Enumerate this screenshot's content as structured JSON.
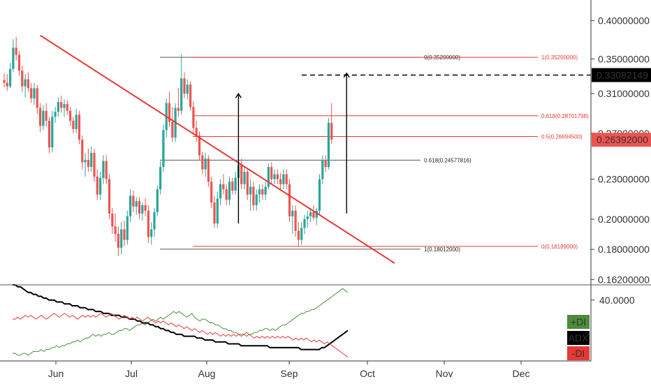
{
  "chart_data": [
    {
      "type": "candlestick",
      "title": "",
      "x_labels": [
        "Jun",
        "Jul",
        "Aug",
        "Sep",
        "Oct",
        "Nov",
        "Dec"
      ],
      "price_axis_ticks": [
        "0.40000000",
        "0.35000000",
        "0.31000000",
        "0.27000000",
        "0.23000000",
        "0.20000000",
        "0.18000000",
        "0.16200000"
      ],
      "price_axis_scale": "log",
      "price_range": [
        0.159,
        0.43
      ],
      "current_price": {
        "value": 0.26392,
        "label": "0.26392000",
        "color": "#ef5350"
      },
      "target_price": {
        "value": 0.33082149,
        "label": "0.33082149",
        "color": "#000000"
      },
      "bull_color": "#26a69a",
      "bear_color": "#ef5350",
      "candles": [
        [
          0.325,
          0.333,
          0.317,
          0.322
        ],
        [
          0.322,
          0.332,
          0.313,
          0.318
        ],
        [
          0.318,
          0.345,
          0.316,
          0.338
        ],
        [
          0.338,
          0.375,
          0.334,
          0.364
        ],
        [
          0.364,
          0.378,
          0.348,
          0.355
        ],
        [
          0.355,
          0.36,
          0.33,
          0.336
        ],
        [
          0.336,
          0.342,
          0.312,
          0.318
        ],
        [
          0.318,
          0.332,
          0.306,
          0.326
        ],
        [
          0.326,
          0.334,
          0.312,
          0.316
        ],
        [
          0.316,
          0.322,
          0.3,
          0.305
        ],
        [
          0.305,
          0.322,
          0.298,
          0.316
        ],
        [
          0.316,
          0.32,
          0.289,
          0.295
        ],
        [
          0.295,
          0.3,
          0.271,
          0.277
        ],
        [
          0.277,
          0.298,
          0.273,
          0.292
        ],
        [
          0.292,
          0.3,
          0.276,
          0.282
        ],
        [
          0.282,
          0.286,
          0.252,
          0.257
        ],
        [
          0.257,
          0.292,
          0.253,
          0.286
        ],
        [
          0.286,
          0.296,
          0.28,
          0.291
        ],
        [
          0.291,
          0.306,
          0.286,
          0.301
        ],
        [
          0.301,
          0.308,
          0.29,
          0.295
        ],
        [
          0.295,
          0.304,
          0.286,
          0.299
        ],
        [
          0.299,
          0.303,
          0.288,
          0.292
        ],
        [
          0.292,
          0.296,
          0.277,
          0.282
        ],
        [
          0.282,
          0.286,
          0.27,
          0.274
        ],
        [
          0.274,
          0.294,
          0.27,
          0.288
        ],
        [
          0.288,
          0.292,
          0.26,
          0.264
        ],
        [
          0.264,
          0.268,
          0.238,
          0.244
        ],
        [
          0.244,
          0.252,
          0.232,
          0.246
        ],
        [
          0.246,
          0.256,
          0.236,
          0.24
        ],
        [
          0.24,
          0.258,
          0.236,
          0.252
        ],
        [
          0.252,
          0.256,
          0.228,
          0.232
        ],
        [
          0.232,
          0.238,
          0.214,
          0.218
        ],
        [
          0.218,
          0.236,
          0.214,
          0.231
        ],
        [
          0.231,
          0.25,
          0.226,
          0.245
        ],
        [
          0.245,
          0.25,
          0.226,
          0.23
        ],
        [
          0.23,
          0.234,
          0.2,
          0.204
        ],
        [
          0.204,
          0.208,
          0.19,
          0.195
        ],
        [
          0.195,
          0.204,
          0.185,
          0.19
        ],
        [
          0.19,
          0.195,
          0.176,
          0.181
        ],
        [
          0.181,
          0.198,
          0.177,
          0.193
        ],
        [
          0.193,
          0.199,
          0.182,
          0.186
        ],
        [
          0.186,
          0.206,
          0.183,
          0.202
        ],
        [
          0.202,
          0.222,
          0.198,
          0.217
        ],
        [
          0.217,
          0.221,
          0.205,
          0.209
        ],
        [
          0.209,
          0.216,
          0.203,
          0.213
        ],
        [
          0.213,
          0.216,
          0.2,
          0.204
        ],
        [
          0.204,
          0.212,
          0.199,
          0.21
        ],
        [
          0.21,
          0.215,
          0.202,
          0.206
        ],
        [
          0.206,
          0.21,
          0.184,
          0.188
        ],
        [
          0.188,
          0.198,
          0.183,
          0.193
        ],
        [
          0.193,
          0.208,
          0.188,
          0.205
        ],
        [
          0.205,
          0.225,
          0.202,
          0.222
        ],
        [
          0.222,
          0.245,
          0.218,
          0.24
        ],
        [
          0.24,
          0.278,
          0.236,
          0.273
        ],
        [
          0.273,
          0.305,
          0.266,
          0.3
        ],
        [
          0.3,
          0.312,
          0.276,
          0.281
        ],
        [
          0.281,
          0.296,
          0.262,
          0.266
        ],
        [
          0.266,
          0.3,
          0.262,
          0.295
        ],
        [
          0.295,
          0.316,
          0.286,
          0.292
        ],
        [
          0.292,
          0.356,
          0.288,
          0.327
        ],
        [
          0.327,
          0.334,
          0.305,
          0.31
        ],
        [
          0.31,
          0.326,
          0.304,
          0.32
        ],
        [
          0.32,
          0.324,
          0.292,
          0.296
        ],
        [
          0.296,
          0.302,
          0.27,
          0.275
        ],
        [
          0.275,
          0.282,
          0.262,
          0.268
        ],
        [
          0.268,
          0.272,
          0.246,
          0.25
        ],
        [
          0.25,
          0.253,
          0.234,
          0.238
        ],
        [
          0.238,
          0.252,
          0.232,
          0.247
        ],
        [
          0.247,
          0.25,
          0.224,
          0.228
        ],
        [
          0.228,
          0.232,
          0.208,
          0.212
        ],
        [
          0.212,
          0.217,
          0.194,
          0.197
        ],
        [
          0.197,
          0.22,
          0.194,
          0.215
        ],
        [
          0.215,
          0.23,
          0.21,
          0.226
        ],
        [
          0.226,
          0.234,
          0.218,
          0.222
        ],
        [
          0.222,
          0.226,
          0.21,
          0.214
        ],
        [
          0.214,
          0.232,
          0.21,
          0.228
        ],
        [
          0.228,
          0.231,
          0.218,
          0.221
        ],
        [
          0.221,
          0.236,
          0.218,
          0.231
        ],
        [
          0.231,
          0.246,
          0.228,
          0.242
        ],
        [
          0.242,
          0.247,
          0.222,
          0.226
        ],
        [
          0.226,
          0.24,
          0.222,
          0.236
        ],
        [
          0.236,
          0.239,
          0.214,
          0.218
        ],
        [
          0.218,
          0.23,
          0.206,
          0.224
        ],
        [
          0.224,
          0.228,
          0.206,
          0.21
        ],
        [
          0.21,
          0.222,
          0.206,
          0.218
        ],
        [
          0.218,
          0.226,
          0.212,
          0.222
        ],
        [
          0.222,
          0.226,
          0.214,
          0.218
        ],
        [
          0.218,
          0.228,
          0.214,
          0.224
        ],
        [
          0.224,
          0.243,
          0.222,
          0.24
        ],
        [
          0.24,
          0.244,
          0.226,
          0.23
        ],
        [
          0.23,
          0.238,
          0.226,
          0.234
        ],
        [
          0.234,
          0.238,
          0.226,
          0.23
        ],
        [
          0.23,
          0.235,
          0.222,
          0.226
        ],
        [
          0.226,
          0.238,
          0.222,
          0.234
        ],
        [
          0.234,
          0.238,
          0.222,
          0.226
        ],
        [
          0.226,
          0.23,
          0.198,
          0.202
        ],
        [
          0.202,
          0.21,
          0.19,
          0.206
        ],
        [
          0.206,
          0.21,
          0.188,
          0.192
        ],
        [
          0.192,
          0.198,
          0.182,
          0.186
        ],
        [
          0.186,
          0.198,
          0.183,
          0.194
        ],
        [
          0.194,
          0.203,
          0.19,
          0.2
        ],
        [
          0.2,
          0.206,
          0.194,
          0.202
        ],
        [
          0.202,
          0.208,
          0.198,
          0.205
        ],
        [
          0.205,
          0.21,
          0.199,
          0.201
        ],
        [
          0.201,
          0.208,
          0.196,
          0.206
        ],
        [
          0.206,
          0.234,
          0.203,
          0.23
        ],
        [
          0.23,
          0.25,
          0.226,
          0.246
        ],
        [
          0.246,
          0.25,
          0.236,
          0.24
        ],
        [
          0.24,
          0.285,
          0.238,
          0.28
        ],
        [
          0.28,
          0.3,
          0.26,
          0.264
        ]
      ],
      "trendline": {
        "from": [
          0.38,
          12
        ],
        "to": [
          0.1715,
          130
        ],
        "color": "#e53935"
      },
      "fib_black": {
        "levels": [
          {
            "value": 0.352,
            "label": "0(0.35200000)"
          },
          {
            "value": 0.24577816,
            "label": "0.618(0.24577816)"
          },
          {
            "value": 0.18012,
            "label": "1(0.18012000)"
          }
        ],
        "color": "#555555"
      },
      "fib_red": {
        "levels": [
          {
            "value": 0.352,
            "label": "1(0.35200000)"
          },
          {
            "value": 0.28701798,
            "label": "0.618(0.28701798)"
          },
          {
            "value": 0.266945,
            "label": "0.5(0.26694500)"
          },
          {
            "value": 0.18189,
            "label": "0(0.18189000)"
          }
        ],
        "color": "#e53935"
      },
      "measure_arrows": [
        {
          "x_index": 78,
          "from": 0.197,
          "to": 0.31
        },
        {
          "x_index": 114,
          "from": 0.204,
          "to": 0.333
        }
      ]
    },
    {
      "type": "line",
      "title": "",
      "y_axis_ticks": [
        "40.0000"
      ],
      "yrange": [
        8,
        48
      ],
      "series": [
        {
          "name": "+DI",
          "color": "#4c8c3a",
          "values": [
            12,
            12,
            11,
            11,
            12,
            12,
            11,
            12,
            13,
            13,
            13,
            14,
            13,
            14,
            14,
            15,
            15,
            16,
            15,
            16,
            16,
            17,
            17,
            18,
            18,
            19,
            18,
            19,
            20,
            20,
            21,
            22,
            21,
            22,
            21,
            22,
            22,
            23,
            22,
            22,
            23,
            24,
            24,
            25,
            25,
            24,
            25,
            26,
            27,
            27,
            28,
            27,
            28,
            29,
            30,
            29,
            30,
            31,
            30,
            31,
            32,
            33,
            34,
            33,
            34,
            33,
            32,
            31,
            32,
            33,
            31,
            30,
            29,
            30,
            30,
            29,
            28,
            28,
            27,
            27,
            26,
            25,
            25,
            24,
            24,
            23,
            23,
            22,
            22,
            22,
            23,
            22,
            22,
            23,
            23,
            24,
            24,
            25,
            25,
            24,
            25,
            24,
            25,
            26,
            27,
            27,
            28,
            29,
            30,
            31,
            32,
            33,
            33,
            34,
            34,
            35,
            35,
            36,
            37,
            38,
            39,
            40,
            41,
            42,
            43,
            44,
            45,
            46,
            45,
            44
          ]
        },
        {
          "name": "ADX",
          "color": "#000000",
          "values": [
            48,
            48,
            47,
            47,
            46,
            45,
            44,
            44,
            43,
            43,
            42,
            42,
            41,
            41,
            40,
            40,
            40,
            39,
            39,
            39,
            38,
            38,
            38,
            37,
            37,
            37,
            36,
            36,
            36,
            35,
            35,
            35,
            34,
            34,
            34,
            33,
            33,
            33,
            32,
            32,
            32,
            32,
            31,
            31,
            31,
            30,
            30,
            30,
            29,
            29,
            28,
            28,
            28,
            27,
            27,
            26,
            26,
            25,
            25,
            24,
            24,
            23,
            23,
            22,
            22,
            22,
            21,
            21,
            21,
            21,
            21,
            20,
            20,
            20,
            19,
            19,
            19,
            19,
            18,
            18,
            18,
            18,
            18,
            17,
            17,
            17,
            17,
            17,
            16,
            16,
            16,
            16,
            16,
            16,
            16,
            16,
            16,
            16,
            16,
            15,
            15,
            15,
            15,
            15,
            15,
            15,
            15,
            15,
            15,
            15,
            15,
            14,
            14,
            14,
            14,
            14,
            14,
            14,
            14,
            15,
            15,
            16,
            17,
            18,
            19,
            20,
            21,
            22,
            23,
            24
          ]
        },
        {
          "name": "-DI",
          "color": "#e53935",
          "values": [
            30,
            30,
            31,
            30,
            31,
            32,
            31,
            32,
            31,
            30,
            31,
            32,
            31,
            30,
            31,
            32,
            33,
            32,
            31,
            32,
            33,
            32,
            31,
            32,
            31,
            30,
            31,
            32,
            31,
            32,
            31,
            32,
            31,
            32,
            33,
            32,
            31,
            32,
            33,
            32,
            31,
            30,
            31,
            32,
            31,
            30,
            31,
            30,
            31,
            30,
            29,
            30,
            31,
            30,
            29,
            28,
            29,
            28,
            29,
            28,
            27,
            28,
            27,
            26,
            27,
            26,
            25,
            26,
            25,
            24,
            25,
            24,
            23,
            24,
            23,
            22,
            23,
            22,
            23,
            22,
            21,
            22,
            21,
            22,
            21,
            22,
            21,
            22,
            21,
            22,
            21,
            22,
            21,
            20,
            21,
            20,
            21,
            20,
            21,
            20,
            21,
            20,
            21,
            20,
            21,
            20,
            21,
            20,
            19,
            20,
            19,
            20,
            19,
            20,
            19,
            18,
            19,
            18,
            19,
            18,
            17,
            18,
            17,
            16,
            15,
            14,
            13,
            12,
            11,
            10
          ]
        }
      ],
      "legend": [
        {
          "label": "+DI",
          "bg": "#4c8c3a",
          "fg": "#ffffff"
        },
        {
          "label": "ADX",
          "bg": "#000000",
          "fg": "#ffffff"
        },
        {
          "label": "-DI",
          "bg": "#e53935",
          "fg": "#ffffff"
        }
      ]
    }
  ]
}
